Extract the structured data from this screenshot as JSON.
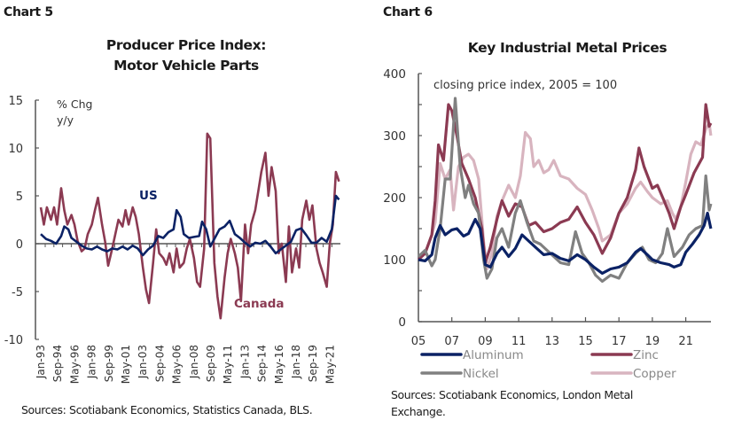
{
  "chart5": {
    "label": "Chart 5",
    "title_line1": "Producer Price Index:",
    "title_line2": "Motor Vehicle Parts",
    "source": "Sources: Scotiabank Economics, Statistics Canada, BLS."
  },
  "chart6": {
    "label": "Chart 6",
    "title": "Key Industrial Metal Prices",
    "source_line1": "Sources: Scotiabank Economics, London Metal",
    "source_line2": "Exchange."
  },
  "chart_data": [
    {
      "type": "line",
      "title": "Producer Price Index: Motor Vehicle Parts",
      "ylabel": "% Chg y/y",
      "xlabel": "",
      "ylim": [
        -10,
        15
      ],
      "yticks": [
        -10,
        -5,
        0,
        5,
        10,
        15
      ],
      "x_tick_labels": [
        "Jan-93",
        "Sep-94",
        "May-96",
        "Jan-98",
        "Sep-99",
        "May-01",
        "Jan-03",
        "Sep-04",
        "May-06",
        "Jan-08",
        "Sep-09",
        "May-11",
        "Jan-13",
        "Sep-14",
        "May-16",
        "Jan-18",
        "Sep-19",
        "May-21"
      ],
      "x_unit": "years since 1993",
      "xlim": [
        1993.0,
        2022.5
      ],
      "series": [
        {
          "name": "US",
          "color": "#0b2265",
          "label_text": "US",
          "x": [
            1993.0,
            1993.5,
            1994.0,
            1994.5,
            1995.0,
            1995.3,
            1995.7,
            1996.0,
            1996.5,
            1997.0,
            1997.5,
            1998.0,
            1998.5,
            1999.0,
            1999.5,
            2000.0,
            2000.5,
            2001.0,
            2001.5,
            2002.0,
            2002.5,
            2003.0,
            2003.5,
            2004.0,
            2004.5,
            2005.0,
            2005.5,
            2006.0,
            2006.3,
            2006.7,
            2007.0,
            2007.5,
            2008.0,
            2008.5,
            2008.8,
            2009.2,
            2009.6,
            2010.0,
            2010.5,
            2011.0,
            2011.5,
            2012.0,
            2012.5,
            2013.0,
            2013.5,
            2014.0,
            2014.5,
            2015.0,
            2015.5,
            2016.0,
            2016.5,
            2017.0,
            2017.5,
            2018.0,
            2018.5,
            2019.0,
            2019.5,
            2020.0,
            2020.5,
            2021.0,
            2021.5,
            2021.9,
            2022.2
          ],
          "values": [
            1.0,
            0.5,
            0.3,
            0.0,
            0.8,
            1.8,
            1.5,
            0.6,
            0.2,
            -0.2,
            -0.5,
            -0.6,
            -0.3,
            -0.6,
            -0.8,
            -0.5,
            -0.6,
            -0.3,
            -0.6,
            -0.2,
            -0.5,
            -1.2,
            -0.6,
            -0.2,
            0.8,
            0.6,
            1.2,
            1.5,
            3.5,
            2.8,
            1.0,
            0.6,
            0.7,
            0.8,
            2.3,
            1.5,
            -0.3,
            0.5,
            1.5,
            1.8,
            2.4,
            1.0,
            0.6,
            0.1,
            -0.3,
            0.1,
            0.0,
            0.3,
            -0.3,
            -1.0,
            -0.6,
            -0.2,
            0.2,
            1.4,
            1.6,
            0.9,
            0.1,
            0.1,
            0.6,
            0.2,
            1.5,
            5.0,
            4.6
          ]
        },
        {
          "name": "Canada",
          "color": "#8b3a52",
          "label_text": "Canada",
          "x": [
            1993.0,
            1993.3,
            1993.6,
            1994.0,
            1994.3,
            1994.6,
            1995.0,
            1995.3,
            1995.6,
            1996.0,
            1996.3,
            1996.6,
            1997.0,
            1997.3,
            1997.6,
            1998.0,
            1998.3,
            1998.6,
            1999.0,
            1999.3,
            1999.6,
            2000.0,
            2000.3,
            2000.6,
            2001.0,
            2001.3,
            2001.6,
            2002.0,
            2002.3,
            2002.6,
            2003.0,
            2003.3,
            2003.6,
            2004.0,
            2004.3,
            2004.6,
            2005.0,
            2005.3,
            2005.6,
            2006.0,
            2006.3,
            2006.6,
            2007.0,
            2007.3,
            2007.6,
            2008.0,
            2008.3,
            2008.6,
            2009.0,
            2009.3,
            2009.6,
            2010.0,
            2010.3,
            2010.6,
            2011.0,
            2011.3,
            2011.6,
            2012.0,
            2012.3,
            2012.6,
            2013.0,
            2013.3,
            2013.6,
            2014.0,
            2014.3,
            2014.6,
            2015.0,
            2015.3,
            2015.6,
            2016.0,
            2016.3,
            2016.6,
            2017.0,
            2017.3,
            2017.6,
            2018.0,
            2018.3,
            2018.6,
            2019.0,
            2019.3,
            2019.6,
            2020.0,
            2020.3,
            2020.6,
            2021.0,
            2021.3,
            2021.6,
            2021.9,
            2022.2
          ],
          "values": [
            3.8,
            2.0,
            3.8,
            2.5,
            3.8,
            2.0,
            5.8,
            3.5,
            2.0,
            3.0,
            2.0,
            0.3,
            -0.8,
            -0.5,
            1.0,
            2.0,
            3.5,
            4.8,
            2.0,
            0.2,
            -2.3,
            -0.5,
            1.0,
            2.5,
            1.8,
            3.5,
            2.0,
            3.8,
            2.8,
            1.0,
            -2.5,
            -4.8,
            -6.2,
            -2.0,
            1.5,
            -1.0,
            -1.5,
            -2.2,
            -1.0,
            -3.0,
            -0.5,
            -2.5,
            -2.0,
            -0.5,
            0.5,
            -1.5,
            -4.0,
            -4.5,
            -0.5,
            11.5,
            11.0,
            -2.0,
            -5.5,
            -7.8,
            -3.5,
            -1.0,
            0.5,
            -1.0,
            -2.5,
            -6.0,
            2.0,
            -1.0,
            2.0,
            3.5,
            5.5,
            7.5,
            9.5,
            5.0,
            8.0,
            5.5,
            -1.0,
            0.0,
            -4.0,
            1.8,
            -3.0,
            -0.5,
            -2.5,
            2.5,
            4.5,
            2.5,
            4.0,
            -0.5,
            -2.0,
            -3.0,
            -4.5,
            0.0,
            2.0,
            7.5,
            6.5
          ]
        }
      ]
    },
    {
      "type": "line",
      "title": "Key Industrial Metal Prices",
      "annotation": "closing price index, 2005 = 100",
      "ylim": [
        0,
        400
      ],
      "yticks": [
        0,
        100,
        200,
        300,
        400
      ],
      "x_tick_labels": [
        "05",
        "07",
        "09",
        "11",
        "13",
        "15",
        "17",
        "19",
        "21"
      ],
      "xlim": [
        2005.0,
        2022.6
      ],
      "legend": "bottom",
      "series": [
        {
          "name": "Aluminum",
          "color": "#0b2265",
          "x": [
            2005.0,
            2005.4,
            2005.8,
            2006.0,
            2006.3,
            2006.6,
            2007.0,
            2007.3,
            2007.7,
            2008.0,
            2008.4,
            2008.7,
            2009.0,
            2009.3,
            2009.7,
            2010.0,
            2010.4,
            2010.8,
            2011.2,
            2011.6,
            2012.0,
            2012.5,
            2013.0,
            2013.5,
            2014.0,
            2014.5,
            2015.0,
            2015.5,
            2016.0,
            2016.5,
            2017.0,
            2017.5,
            2018.0,
            2018.3,
            2018.7,
            2019.0,
            2019.5,
            2020.0,
            2020.3,
            2020.7,
            2021.0,
            2021.4,
            2021.8,
            2022.1,
            2022.3,
            2022.5
          ],
          "values": [
            100,
            98,
            108,
            135,
            155,
            140,
            148,
            150,
            138,
            142,
            165,
            150,
            92,
            88,
            110,
            120,
            105,
            118,
            140,
            130,
            120,
            108,
            110,
            102,
            98,
            108,
            100,
            88,
            78,
            85,
            88,
            95,
            112,
            118,
            108,
            100,
            95,
            92,
            88,
            92,
            112,
            125,
            140,
            155,
            175,
            150
          ]
        },
        {
          "name": "Zinc",
          "color": "#8b3a52",
          "x": [
            2005.0,
            2005.4,
            2005.8,
            2006.0,
            2006.2,
            2006.5,
            2006.8,
            2007.0,
            2007.3,
            2007.6,
            2008.0,
            2008.4,
            2008.8,
            2009.0,
            2009.3,
            2009.7,
            2010.0,
            2010.4,
            2010.8,
            2011.2,
            2011.6,
            2012.0,
            2012.5,
            2013.0,
            2013.5,
            2014.0,
            2014.5,
            2015.0,
            2015.5,
            2016.0,
            2016.5,
            2017.0,
            2017.5,
            2018.0,
            2018.2,
            2018.5,
            2019.0,
            2019.3,
            2019.7,
            2020.0,
            2020.3,
            2020.7,
            2021.0,
            2021.5,
            2022.0,
            2022.2,
            2022.4,
            2022.5
          ],
          "values": [
            100,
            110,
            140,
            195,
            285,
            260,
            350,
            340,
            300,
            255,
            230,
            200,
            150,
            95,
            120,
            165,
            195,
            170,
            190,
            185,
            155,
            160,
            145,
            150,
            160,
            165,
            185,
            160,
            140,
            110,
            135,
            175,
            200,
            245,
            280,
            250,
            215,
            220,
            195,
            175,
            150,
            185,
            205,
            240,
            265,
            350,
            315,
            320
          ]
        },
        {
          "name": "Nickel",
          "color": "#808080",
          "x": [
            2005.0,
            2005.4,
            2005.8,
            2006.0,
            2006.3,
            2006.6,
            2006.9,
            2007.2,
            2007.5,
            2007.8,
            2008.0,
            2008.3,
            2008.6,
            2008.9,
            2009.1,
            2009.4,
            2009.7,
            2010.0,
            2010.4,
            2010.8,
            2011.1,
            2011.5,
            2011.9,
            2012.3,
            2012.7,
            2013.1,
            2013.5,
            2014.0,
            2014.4,
            2014.8,
            2015.2,
            2015.6,
            2016.0,
            2016.5,
            2017.0,
            2017.5,
            2018.0,
            2018.4,
            2018.8,
            2019.2,
            2019.6,
            2019.9,
            2020.3,
            2020.8,
            2021.2,
            2021.6,
            2022.0,
            2022.2,
            2022.4,
            2022.5
          ],
          "values": [
            105,
            115,
            90,
            100,
            150,
            230,
            230,
            360,
            250,
            200,
            220,
            190,
            175,
            100,
            70,
            85,
            135,
            150,
            120,
            175,
            195,
            160,
            130,
            125,
            115,
            105,
            95,
            92,
            145,
            110,
            95,
            75,
            65,
            75,
            70,
            95,
            110,
            120,
            100,
            95,
            110,
            150,
            105,
            120,
            140,
            150,
            155,
            235,
            180,
            190
          ]
        },
        {
          "name": "Copper",
          "color": "#d8b4bf",
          "x": [
            2005.0,
            2005.4,
            2005.8,
            2006.0,
            2006.3,
            2006.6,
            2006.9,
            2007.1,
            2007.4,
            2007.7,
            2008.0,
            2008.3,
            2008.6,
            2008.9,
            2009.1,
            2009.4,
            2009.7,
            2010.0,
            2010.4,
            2010.8,
            2011.1,
            2011.4,
            2011.7,
            2011.9,
            2012.2,
            2012.5,
            2012.8,
            2013.1,
            2013.5,
            2014.0,
            2014.5,
            2015.0,
            2015.4,
            2015.8,
            2016.0,
            2016.5,
            2017.0,
            2017.5,
            2018.0,
            2018.3,
            2018.7,
            2019.0,
            2019.5,
            2019.9,
            2020.2,
            2020.4,
            2020.7,
            2021.0,
            2021.3,
            2021.6,
            2021.9,
            2022.2,
            2022.4,
            2022.5
          ],
          "values": [
            100,
            110,
            140,
            160,
            255,
            230,
            245,
            180,
            250,
            265,
            270,
            260,
            230,
            130,
            85,
            110,
            170,
            195,
            220,
            200,
            235,
            305,
            295,
            250,
            260,
            240,
            245,
            260,
            235,
            230,
            215,
            205,
            180,
            150,
            130,
            140,
            175,
            190,
            215,
            225,
            210,
            200,
            190,
            195,
            175,
            165,
            185,
            225,
            270,
            290,
            285,
            310,
            320,
            300
          ]
        }
      ]
    }
  ]
}
